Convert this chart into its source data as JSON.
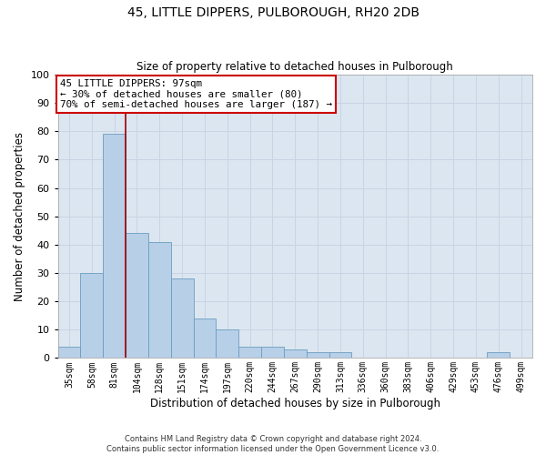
{
  "title1": "45, LITTLE DIPPERS, PULBOROUGH, RH20 2DB",
  "title2": "Size of property relative to detached houses in Pulborough",
  "xlabel": "Distribution of detached houses by size in Pulborough",
  "ylabel": "Number of detached properties",
  "categories": [
    "35sqm",
    "58sqm",
    "81sqm",
    "104sqm",
    "128sqm",
    "151sqm",
    "174sqm",
    "197sqm",
    "220sqm",
    "244sqm",
    "267sqm",
    "290sqm",
    "313sqm",
    "336sqm",
    "360sqm",
    "383sqm",
    "406sqm",
    "429sqm",
    "453sqm",
    "476sqm",
    "499sqm"
  ],
  "values": [
    4,
    30,
    79,
    44,
    41,
    28,
    14,
    10,
    4,
    4,
    3,
    2,
    2,
    0,
    0,
    0,
    0,
    0,
    0,
    2,
    0
  ],
  "bar_color": "#b8cfe8",
  "bar_edge_color": "#6a9ec0",
  "vline_x_index": 2.5,
  "vline_color": "#990000",
  "annotation_text": "45 LITTLE DIPPERS: 97sqm\n← 30% of detached houses are smaller (80)\n70% of semi-detached houses are larger (187) →",
  "annotation_box_facecolor": "#ffffff",
  "annotation_box_edgecolor": "#cc0000",
  "ylim": [
    0,
    100
  ],
  "yticks": [
    0,
    10,
    20,
    30,
    40,
    50,
    60,
    70,
    80,
    90,
    100
  ],
  "grid_color": "#c8d4e4",
  "bg_color": "#dce6f0",
  "fig_bg_color": "#ffffff",
  "footer1": "Contains HM Land Registry data © Crown copyright and database right 2024.",
  "footer2": "Contains public sector information licensed under the Open Government Licence v3.0."
}
